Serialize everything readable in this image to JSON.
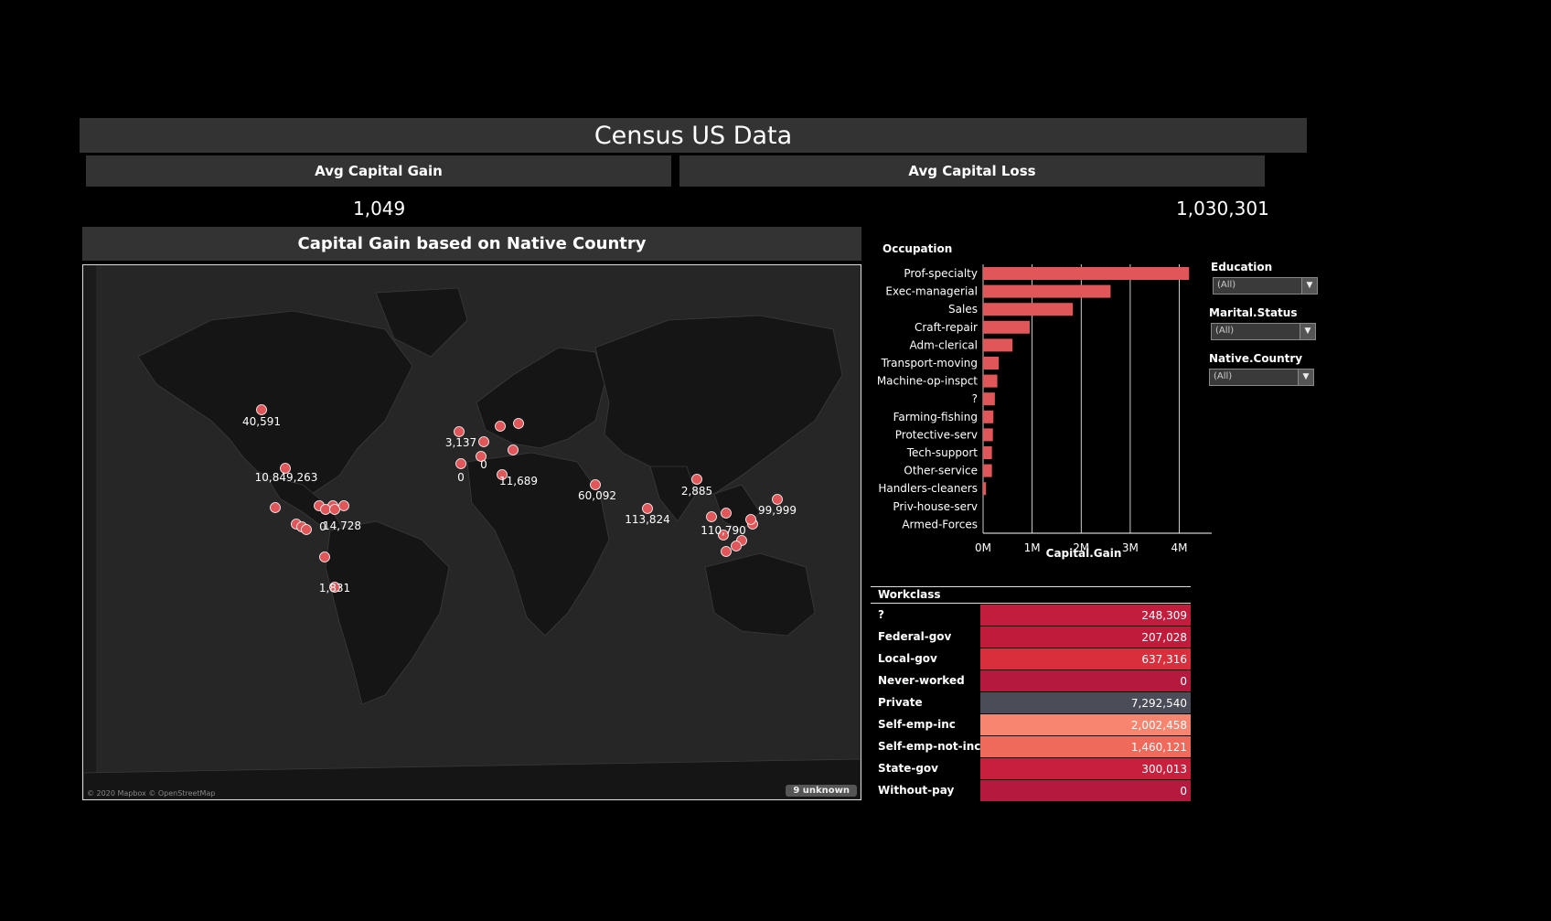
{
  "dashboard": {
    "title": "Census US Data",
    "kpis": [
      {
        "label": "Avg Capital Gain",
        "value": "1,049"
      },
      {
        "label": "Avg Capital Loss",
        "value": "1,030,301"
      }
    ]
  },
  "map": {
    "title": "Capital Gain based on Native Country",
    "credit": "© 2020 Mapbox © OpenStreetMap",
    "unknown_badge": "9 unknown",
    "point_color": "#e05659",
    "labels": [
      "40,591",
      "10,849,263",
      "0",
      "14,728",
      "1,831",
      "3,137",
      "0",
      "0",
      "11,689",
      "60,092",
      "113,824",
      "2,885",
      "110,790",
      "99,999"
    ]
  },
  "filters": [
    {
      "label": "Education",
      "value": "(All)"
    },
    {
      "label": "Marital.Status",
      "value": "(All)"
    },
    {
      "label": "Native.Country",
      "value": "(All)"
    }
  ],
  "chart_data": {
    "type": "bar",
    "orientation": "horizontal",
    "row_header": "Occupation",
    "xlabel": "Capital.Gain",
    "categories": [
      "Prof-specialty",
      "Exec-managerial",
      "Sales",
      "Craft-repair",
      "Adm-clerical",
      "Transport-moving",
      "Machine-op-inspct",
      "?",
      "Farming-fishing",
      "Protective-serv",
      "Tech-support",
      "Other-service",
      "Handlers-cleaners",
      "Priv-house-serv",
      "Armed-Forces"
    ],
    "values": [
      4200000,
      2600000,
      1830000,
      950000,
      600000,
      320000,
      290000,
      240000,
      210000,
      200000,
      180000,
      180000,
      60000,
      0,
      0
    ],
    "xticks": [
      "0M",
      "1M",
      "2M",
      "3M",
      "4M"
    ],
    "xlim": [
      0,
      4400000
    ],
    "grid": true,
    "bar_color": "#e05659"
  },
  "workclass": {
    "header": "Workclass",
    "rows": [
      {
        "label": "?",
        "value": "248,309",
        "color": "#c21d3c"
      },
      {
        "label": "Federal-gov",
        "value": "207,028",
        "color": "#c11b3c"
      },
      {
        "label": "Local-gov",
        "value": "637,316",
        "color": "#d92f3c"
      },
      {
        "label": "Never-worked",
        "value": "0",
        "color": "#b6193e"
      },
      {
        "label": "Private",
        "value": "7,292,540",
        "color": "#4a4c57"
      },
      {
        "label": "Self-emp-inc",
        "value": "2,002,458",
        "color": "#f8856f"
      },
      {
        "label": "Self-emp-not-inc",
        "value": "1,460,121",
        "color": "#ef6a5a"
      },
      {
        "label": "State-gov",
        "value": "300,013",
        "color": "#c8203c"
      },
      {
        "label": "Without-pay",
        "value": "0",
        "color": "#b6193e"
      }
    ]
  }
}
